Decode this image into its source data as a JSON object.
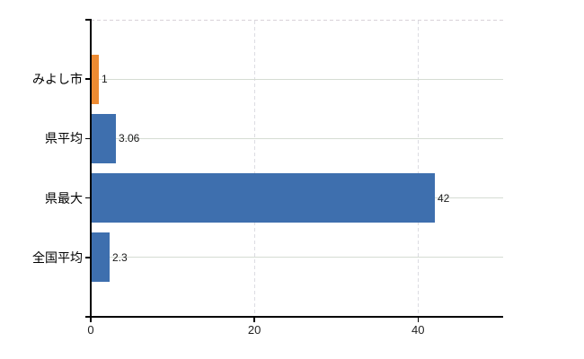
{
  "chart_data": {
    "type": "bar",
    "orientation": "horizontal",
    "title": "",
    "xlabel": "",
    "ylabel": "",
    "categories": [
      "みよし市",
      "県平均",
      "県最大",
      "全国平均"
    ],
    "values": [
      1,
      3.06,
      42,
      2.3
    ],
    "value_labels": [
      "1",
      "3.06",
      "42",
      "2.3"
    ],
    "bar_colors": [
      "#ed8b32",
      "#3e6fae",
      "#3e6fae",
      "#3e6fae"
    ],
    "x_ticks": [
      0,
      20,
      40
    ],
    "x_tick_labels": [
      "0",
      "20",
      "40"
    ],
    "xlim": [
      0,
      50.4
    ],
    "grid": true,
    "legend": false
  },
  "colors": {
    "bar_default": "#3e6fae",
    "bar_highlight": "#ed8b32",
    "axis": "#000000",
    "h_gridline": "#d5dcd3",
    "v_gridline": "#dcdce2",
    "top_border": "#d8d2d8",
    "value_label": "#1a1a1a",
    "category_label": "#000000",
    "tick_label": "#1f1f1f",
    "background": "#ffffff"
  }
}
